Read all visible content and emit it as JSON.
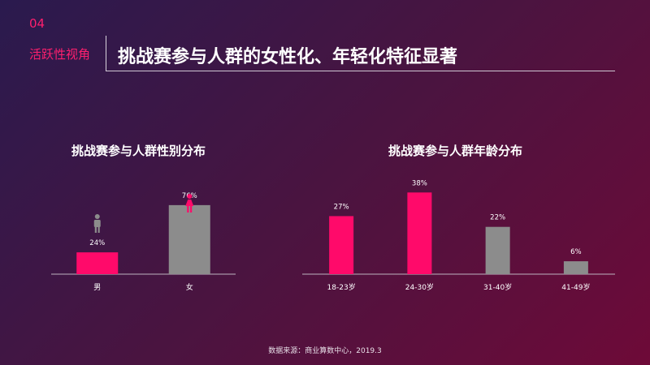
{
  "header": {
    "section_number": "04",
    "section_label": "活跃性视角",
    "title": "挑战赛参与人群的女性化、年轻化特征显著"
  },
  "colors": {
    "accent": "#ff0a6a",
    "neutral": "#8c8c8c",
    "axis": "#bdb3bf"
  },
  "icons": {
    "male": "male-person-icon",
    "female": "female-person-icon"
  },
  "chart_data": [
    {
      "type": "bar",
      "title": "挑战赛参与人群性别分布",
      "categories": [
        "男",
        "女"
      ],
      "values": [
        24,
        76
      ],
      "value_labels": [
        "24%",
        "76%"
      ],
      "ylim": [
        0,
        100
      ],
      "grid": false,
      "bar_colors": [
        "#ff0a6a",
        "#8c8c8c"
      ]
    },
    {
      "type": "bar",
      "title": "挑战赛参与人群年龄分布",
      "categories": [
        "18-23岁",
        "24-30岁",
        "31-40岁",
        "41-49岁"
      ],
      "values": [
        27,
        38,
        22,
        6
      ],
      "value_labels": [
        "27%",
        "38%",
        "22%",
        "6%"
      ],
      "ylim": [
        0,
        40
      ],
      "grid": false,
      "bar_colors": [
        "#ff0a6a",
        "#ff0a6a",
        "#8c8c8c",
        "#8c8c8c"
      ]
    }
  ],
  "footer": {
    "source": "数据来源：商业算数中心，2019.3"
  }
}
